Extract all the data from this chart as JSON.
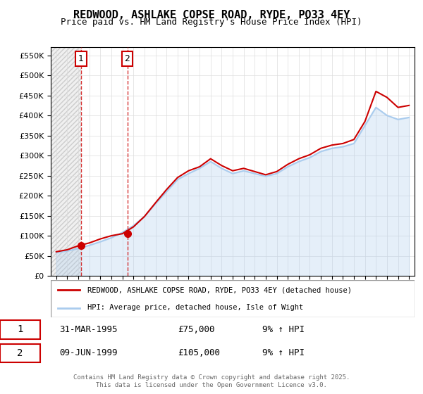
{
  "title": "REDWOOD, ASHLAKE COPSE ROAD, RYDE, PO33 4EY",
  "subtitle": "Price paid vs. HM Land Registry's House Price Index (HPI)",
  "legend_line1": "REDWOOD, ASHLAKE COPSE ROAD, RYDE, PO33 4EY (detached house)",
  "legend_line2": "HPI: Average price, detached house, Isle of Wight",
  "transaction1_label": "1",
  "transaction1_date": "31-MAR-1995",
  "transaction1_price": "£75,000",
  "transaction1_hpi": "9% ↑ HPI",
  "transaction2_label": "2",
  "transaction2_date": "09-JUN-1999",
  "transaction2_price": "£105,000",
  "transaction2_hpi": "9% ↑ HPI",
  "footer": "Contains HM Land Registry data © Crown copyright and database right 2025.\nThis data is licensed under the Open Government Licence v3.0.",
  "red_color": "#cc0000",
  "blue_color": "#aaccee",
  "hpi_years": [
    1993,
    1994,
    1995,
    1996,
    1997,
    1998,
    1999,
    2000,
    2001,
    2002,
    2003,
    2004,
    2005,
    2006,
    2007,
    2008,
    2009,
    2010,
    2011,
    2012,
    2013,
    2014,
    2015,
    2016,
    2017,
    2018,
    2019,
    2020,
    2021,
    2022,
    2023,
    2024,
    2025
  ],
  "hpi_values": [
    58000,
    62000,
    68000,
    76000,
    85000,
    95000,
    108000,
    125000,
    148000,
    180000,
    210000,
    240000,
    255000,
    268000,
    285000,
    268000,
    255000,
    262000,
    255000,
    248000,
    255000,
    272000,
    285000,
    295000,
    310000,
    318000,
    322000,
    330000,
    375000,
    420000,
    400000,
    390000,
    395000
  ],
  "prop_years": [
    1993,
    1994,
    1995,
    1996,
    1997,
    1998,
    1999,
    2000,
    2001,
    2002,
    2003,
    2004,
    2005,
    2006,
    2007,
    2008,
    2009,
    2010,
    2011,
    2012,
    2013,
    2014,
    2015,
    2016,
    2017,
    2018,
    2019,
    2020,
    2021,
    2022,
    2023,
    2024,
    2025
  ],
  "prop_values": [
    60000,
    65000,
    75000,
    82000,
    92000,
    100000,
    105000,
    122000,
    148000,
    182000,
    215000,
    245000,
    262000,
    272000,
    292000,
    275000,
    262000,
    268000,
    260000,
    252000,
    260000,
    278000,
    292000,
    302000,
    318000,
    326000,
    330000,
    340000,
    385000,
    460000,
    445000,
    420000,
    425000
  ],
  "transaction1_x": 1995.25,
  "transaction2_x": 1999.44,
  "ylim_max": 570000,
  "ylim_min": 0
}
